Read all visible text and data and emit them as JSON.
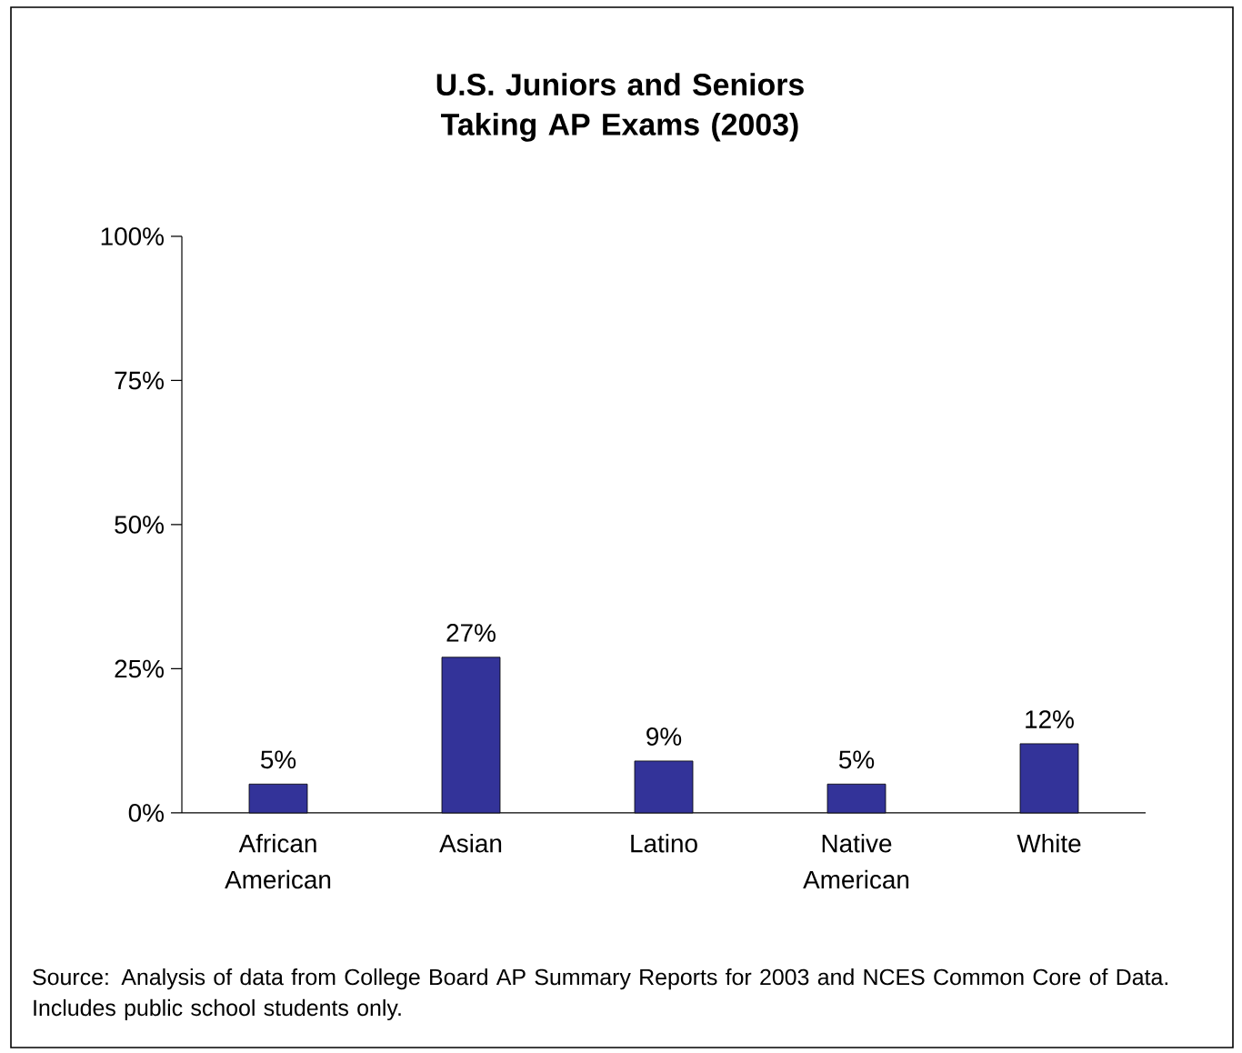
{
  "chart_data": {
    "type": "bar",
    "title": "U.S. Juniors and Seniors Taking AP Exams (2003)",
    "categories": [
      "African American",
      "Asian",
      "Latino",
      "Native American",
      "White"
    ],
    "values": [
      5,
      27,
      9,
      5,
      12
    ],
    "value_labels": [
      "5%",
      "27%",
      "9%",
      "5%",
      "12%"
    ],
    "color": "#333399",
    "ylim": [
      0,
      100
    ],
    "yticks": [
      {
        "value": 0,
        "label": "0%"
      },
      {
        "value": 25,
        "label": "25%"
      },
      {
        "value": 50,
        "label": "50%"
      },
      {
        "value": 75,
        "label": "75%"
      },
      {
        "value": 100,
        "label": "100%"
      }
    ],
    "annotations": [
      "Source:  Analysis of data from College Board AP Summary Reports for 2003 and NCES Common Core of Data.  Includes public school students only."
    ]
  }
}
